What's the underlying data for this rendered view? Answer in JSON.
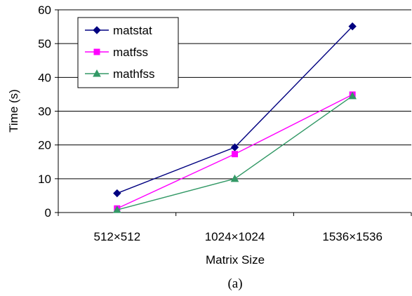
{
  "chart_data": {
    "type": "line",
    "categories": [
      "512×512",
      "1024×1024",
      "1536×1536"
    ],
    "series": [
      {
        "name": "matstat",
        "values": [
          5.7,
          19.3,
          55.1
        ],
        "color": "#000080",
        "marker": "diamond"
      },
      {
        "name": "matfss",
        "values": [
          1.2,
          17.3,
          34.9
        ],
        "color": "#ff00ff",
        "marker": "square"
      },
      {
        "name": "mathfss",
        "values": [
          0.8,
          10.0,
          34.5
        ],
        "color": "#339966",
        "marker": "triangle"
      }
    ],
    "xlabel": "Matrix Size",
    "ylabel": "Time (s)",
    "ylim": [
      0,
      60
    ],
    "yticks": [
      0,
      10,
      20,
      30,
      40,
      50,
      60
    ],
    "grid": true,
    "legend_position": "top-left"
  },
  "caption": "(a)"
}
